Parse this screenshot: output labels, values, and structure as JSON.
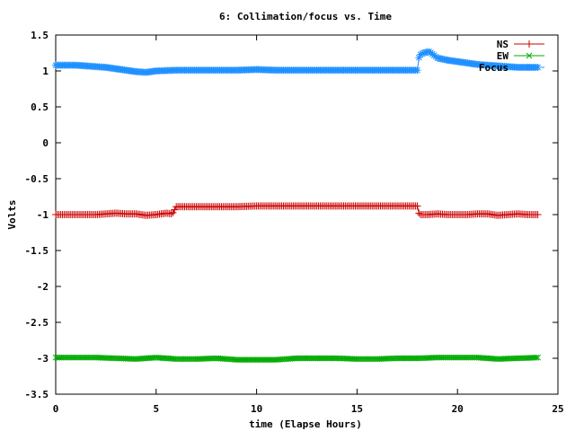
{
  "chart_data": {
    "type": "line",
    "title": "6: Collimation/focus vs. Time",
    "xlabel": "time (Elapse Hours)",
    "ylabel": "Volts",
    "xlim": [
      0,
      25
    ],
    "ylim": [
      -3.5,
      1.5
    ],
    "x_ticks": [
      "0",
      "5",
      "10",
      "15",
      "20",
      "25"
    ],
    "y_ticks": [
      "1.5",
      "1",
      "0.5",
      "0",
      "-0.5",
      "-1",
      "-1.5",
      "-2",
      "-2.5",
      "-3",
      "-3.5"
    ],
    "x_tick_values": [
      0,
      5,
      10,
      15,
      20,
      25
    ],
    "y_tick_values": [
      1.5,
      1,
      0.5,
      0,
      -0.5,
      -1,
      -1.5,
      -2,
      -2.5,
      -3,
      -3.5
    ],
    "grid": false,
    "legend_position": "top-right",
    "series": [
      {
        "name": "NS",
        "color": "#cc0000",
        "marker": "plus",
        "x": [
          0,
          1,
          2,
          2.5,
          3,
          3.5,
          4,
          4.5,
          5,
          5.5,
          5.8,
          6,
          7,
          8,
          9,
          10,
          11,
          12,
          13,
          14,
          15,
          16,
          17,
          18,
          18.1,
          18.5,
          19,
          19.5,
          20,
          20.5,
          21,
          21.5,
          22,
          22.5,
          23,
          23.5,
          24
        ],
        "y": [
          -1.0,
          -1.0,
          -1.0,
          -0.99,
          -0.98,
          -0.99,
          -0.99,
          -1.01,
          -1.0,
          -0.98,
          -0.99,
          -0.89,
          -0.89,
          -0.89,
          -0.89,
          -0.88,
          -0.88,
          -0.88,
          -0.88,
          -0.88,
          -0.88,
          -0.88,
          -0.88,
          -0.88,
          -1.0,
          -1.0,
          -0.99,
          -1.0,
          -1.0,
          -1.0,
          -0.99,
          -0.99,
          -1.01,
          -1.0,
          -0.99,
          -1.0,
          -1.0
        ]
      },
      {
        "name": "EW",
        "color": "#00aa00",
        "marker": "cross",
        "x": [
          0,
          1,
          2,
          3,
          4,
          5,
          6,
          7,
          8,
          9,
          10,
          11,
          12,
          13,
          14,
          15,
          16,
          17,
          18,
          19,
          20,
          21,
          22,
          23,
          24
        ],
        "y": [
          -2.99,
          -2.99,
          -2.99,
          -3.0,
          -3.01,
          -2.99,
          -3.01,
          -3.01,
          -3.0,
          -3.02,
          -3.02,
          -3.02,
          -3.0,
          -3.0,
          -3.0,
          -3.01,
          -3.01,
          -3.0,
          -3.0,
          -2.99,
          -2.99,
          -2.99,
          -3.01,
          -3.0,
          -2.99
        ]
      },
      {
        "name": "Focus",
        "color": "#1e90ff",
        "marker": "star",
        "x": [
          0,
          0.5,
          1,
          1.5,
          2,
          2.5,
          3,
          3.5,
          4,
          4.5,
          5,
          6,
          7,
          8,
          9,
          10,
          11,
          12,
          13,
          14,
          15,
          16,
          17,
          18,
          18.1,
          18.3,
          18.6,
          19,
          19.5,
          20,
          20.5,
          21,
          21.5,
          22,
          22.5,
          23,
          23.5,
          24
        ],
        "y": [
          1.08,
          1.08,
          1.08,
          1.07,
          1.06,
          1.05,
          1.03,
          1.01,
          0.99,
          0.98,
          1.0,
          1.01,
          1.01,
          1.01,
          1.01,
          1.02,
          1.01,
          1.01,
          1.01,
          1.01,
          1.01,
          1.01,
          1.01,
          1.01,
          1.22,
          1.25,
          1.27,
          1.18,
          1.15,
          1.13,
          1.11,
          1.09,
          1.08,
          1.07,
          1.06,
          1.05,
          1.05,
          1.05
        ]
      }
    ]
  }
}
